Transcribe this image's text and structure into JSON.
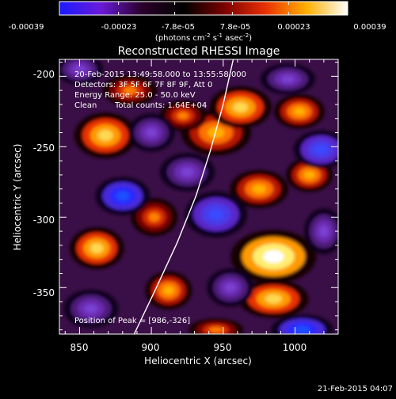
{
  "colorbar": {
    "ticks": [
      "-0.00039",
      "-0.00023",
      "-7.8e-05",
      "7.8e-05",
      "0.00023",
      "0.00039"
    ],
    "tick_values": [
      -0.00039,
      -0.00023,
      -7.8e-05,
      7.8e-05,
      0.00023,
      0.00039
    ],
    "range": [
      -0.00039,
      0.00039
    ],
    "unit_prefix": "(photons cm",
    "unit_sup1": "-2",
    "unit_mid": " s",
    "unit_sup2": "-1",
    "unit_suffix": " asec",
    "unit_sup3": "-2",
    "unit_close": ")",
    "colors": [
      "#1a1aff",
      "#6a1ad8",
      "#2a002a",
      "#000000",
      "#7a0000",
      "#e83000",
      "#ffb000",
      "#ffffff"
    ]
  },
  "chart_data": {
    "type": "heatmap",
    "title": "Reconstructed RHESSI Image",
    "xlabel": "Heliocentric X (arcsec)",
    "ylabel": "Heliocentric Y (arcsec)",
    "xlim": [
      836,
      1030
    ],
    "ylim": [
      -383,
      -188
    ],
    "xticks": [
      850,
      900,
      950,
      1000
    ],
    "yticks": [
      -200,
      -250,
      -300,
      -350
    ],
    "peak": [
      986,
      -326
    ],
    "limb_curve": [
      [
        888,
        -383
      ],
      [
        903,
        -351
      ],
      [
        918,
        -318
      ],
      [
        931,
        -285
      ],
      [
        941,
        -253
      ],
      [
        950,
        -220
      ],
      [
        957,
        -188
      ]
    ],
    "blobs": [
      {
        "x": 985,
        "y": -328,
        "rx": 22,
        "ry": 14,
        "level": 1.0
      },
      {
        "x": 985,
        "y": -358,
        "rx": 18,
        "ry": 10,
        "level": 0.65
      },
      {
        "x": 975,
        "y": -280,
        "rx": 15,
        "ry": 10,
        "level": 0.55
      },
      {
        "x": 945,
        "y": -240,
        "rx": 18,
        "ry": 12,
        "level": 0.6
      },
      {
        "x": 962,
        "y": -222,
        "rx": 16,
        "ry": 11,
        "level": 0.7
      },
      {
        "x": 1003,
        "y": -225,
        "rx": 13,
        "ry": 9,
        "level": 0.5
      },
      {
        "x": 868,
        "y": -242,
        "rx": 16,
        "ry": 12,
        "level": 0.7
      },
      {
        "x": 862,
        "y": -322,
        "rx": 14,
        "ry": 11,
        "level": 0.75
      },
      {
        "x": 912,
        "y": -352,
        "rx": 12,
        "ry": 10,
        "level": 0.6
      },
      {
        "x": 902,
        "y": -300,
        "rx": 12,
        "ry": 10,
        "level": 0.35
      },
      {
        "x": 1010,
        "y": -270,
        "rx": 12,
        "ry": 9,
        "level": 0.45
      },
      {
        "x": 885,
        "y": -210,
        "rx": 14,
        "ry": 8,
        "level": 0.35
      },
      {
        "x": 922,
        "y": -228,
        "rx": 12,
        "ry": 8,
        "level": 0.4
      },
      {
        "x": 945,
        "y": -380,
        "rx": 14,
        "ry": 6,
        "level": 0.4
      },
      {
        "x": 880,
        "y": -285,
        "rx": 14,
        "ry": 10,
        "level": -0.9
      },
      {
        "x": 945,
        "y": -298,
        "rx": 16,
        "ry": 12,
        "level": -0.7
      },
      {
        "x": 925,
        "y": -268,
        "rx": 14,
        "ry": 10,
        "level": -0.6
      },
      {
        "x": 1018,
        "y": -252,
        "rx": 14,
        "ry": 10,
        "level": -0.75
      },
      {
        "x": 1005,
        "y": -380,
        "rx": 16,
        "ry": 8,
        "level": -0.9
      },
      {
        "x": 900,
        "y": -240,
        "rx": 12,
        "ry": 10,
        "level": -0.55
      },
      {
        "x": 995,
        "y": -202,
        "rx": 14,
        "ry": 8,
        "level": -0.5
      },
      {
        "x": 1020,
        "y": -310,
        "rx": 10,
        "ry": 12,
        "level": -0.55
      },
      {
        "x": 858,
        "y": -365,
        "rx": 14,
        "ry": 10,
        "level": -0.6
      },
      {
        "x": 955,
        "y": -350,
        "rx": 12,
        "ry": 10,
        "level": -0.5
      },
      {
        "x": 850,
        "y": -195,
        "rx": 12,
        "ry": 8,
        "level": -0.5
      }
    ]
  },
  "annotations": {
    "time_range": "20-Feb-2015 13:49:58.000 to 13:55:58.000",
    "detectors": "Detectors: 3F 5F 6F 7F 8F 9F, Att 0",
    "energy_range": "Energy Range: 25.0 - 50.0 keV",
    "algorithm": "Clean",
    "total_counts": "Total counts: 1.64E+04",
    "peak_position": "Position of Peak = [986,-326]"
  },
  "footer": {
    "timestamp": "21-Feb-2015 04:07"
  }
}
